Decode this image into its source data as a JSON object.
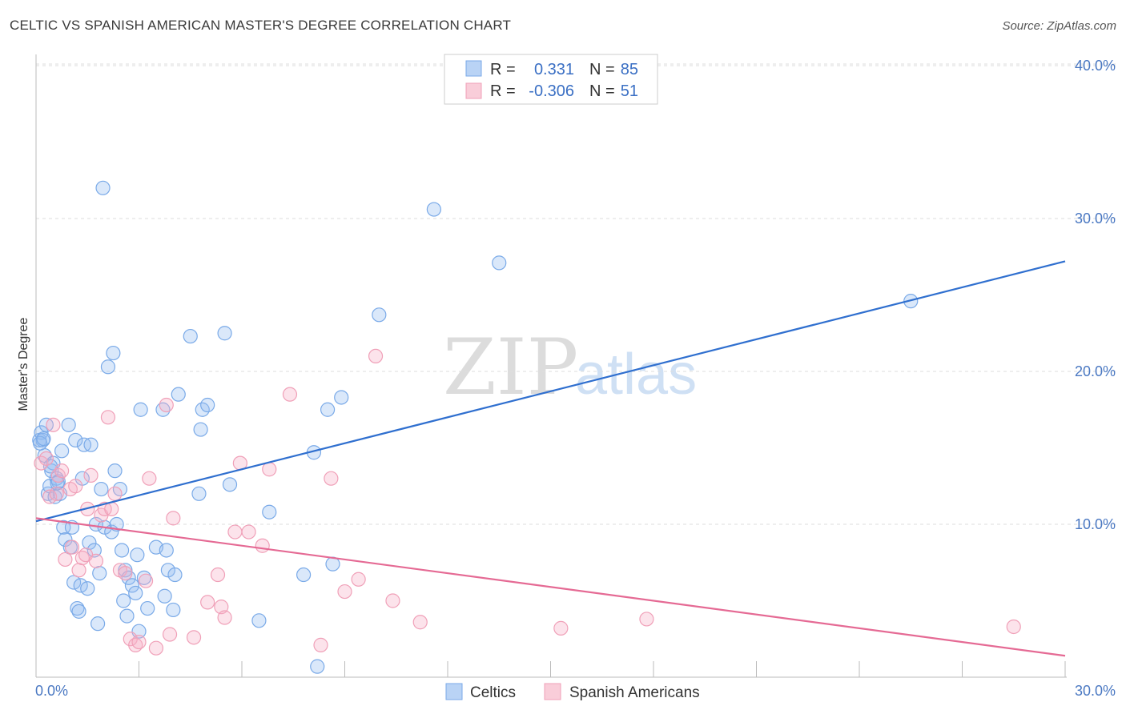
{
  "title": "CELTIC VS SPANISH AMERICAN MASTER'S DEGREE CORRELATION CHART",
  "source": "Source: ZipAtlas.com",
  "watermark": {
    "zip": "ZIP",
    "atlas": "atlas"
  },
  "legend": {
    "rows": [
      {
        "r_label": "R =",
        "r_value": "0.331",
        "n_label": "N =",
        "n_value": "85",
        "color": "#7aaae8"
      },
      {
        "r_label": "R =",
        "r_value": "-0.306",
        "n_label": "N =",
        "n_value": "51",
        "color": "#f0a0b8"
      }
    ]
  },
  "bottom_legend": [
    {
      "label": "Celtics",
      "color": "#7aaae8"
    },
    {
      "label": "Spanish Americans",
      "color": "#f0a0b8"
    }
  ],
  "chart_data": {
    "type": "scatter",
    "title": "CELTIC VS SPANISH AMERICAN MASTER'S DEGREE CORRELATION CHART",
    "xlabel": "",
    "ylabel": "Master's Degree",
    "xlim": [
      0,
      30
    ],
    "ylim": [
      0,
      41
    ],
    "x_tick_labels": [
      "0.0%",
      "30.0%"
    ],
    "y_ticks": [
      10,
      20,
      30,
      40
    ],
    "y_tick_labels": [
      "10.0%",
      "20.0%",
      "30.0%",
      "40.0%"
    ],
    "grid": true,
    "series": [
      {
        "name": "Celtics",
        "color": "#7aaae8",
        "line_color": "#2f6fcf",
        "trend": {
          "x": [
            0,
            30
          ],
          "y": [
            10.2,
            27.2
          ]
        },
        "points": [
          [
            0.1,
            15.5
          ],
          [
            0.15,
            16.0
          ],
          [
            0.2,
            15.5
          ],
          [
            0.25,
            14.5
          ],
          [
            0.3,
            16.5
          ],
          [
            0.35,
            12.0
          ],
          [
            0.4,
            12.5
          ],
          [
            0.45,
            13.5
          ],
          [
            0.5,
            14.0
          ],
          [
            0.55,
            11.8
          ],
          [
            0.6,
            13.0
          ],
          [
            0.65,
            12.8
          ],
          [
            0.7,
            12.0
          ],
          [
            0.75,
            14.8
          ],
          [
            0.8,
            9.8
          ],
          [
            0.85,
            9.0
          ],
          [
            0.95,
            16.5
          ],
          [
            1.0,
            8.5
          ],
          [
            1.1,
            6.2
          ],
          [
            1.15,
            15.5
          ],
          [
            1.2,
            4.5
          ],
          [
            1.25,
            4.3
          ],
          [
            1.3,
            6.0
          ],
          [
            1.35,
            13.0
          ],
          [
            1.4,
            15.2
          ],
          [
            1.5,
            5.8
          ],
          [
            1.55,
            8.8
          ],
          [
            1.6,
            15.2
          ],
          [
            1.7,
            8.3
          ],
          [
            1.75,
            10.0
          ],
          [
            1.8,
            3.5
          ],
          [
            1.85,
            6.8
          ],
          [
            1.9,
            12.3
          ],
          [
            1.95,
            32.0
          ],
          [
            2.0,
            9.8
          ],
          [
            2.1,
            20.3
          ],
          [
            2.2,
            9.5
          ],
          [
            2.25,
            21.2
          ],
          [
            2.3,
            13.5
          ],
          [
            2.35,
            10.0
          ],
          [
            2.45,
            12.3
          ],
          [
            2.5,
            8.3
          ],
          [
            2.55,
            5.0
          ],
          [
            2.6,
            7.0
          ],
          [
            2.65,
            4.0
          ],
          [
            2.7,
            6.5
          ],
          [
            2.8,
            6.0
          ],
          [
            2.9,
            5.5
          ],
          [
            2.95,
            8.0
          ],
          [
            3.0,
            3.0
          ],
          [
            3.05,
            17.5
          ],
          [
            3.15,
            6.5
          ],
          [
            3.25,
            4.5
          ],
          [
            3.5,
            8.5
          ],
          [
            3.7,
            17.5
          ],
          [
            3.75,
            5.3
          ],
          [
            3.8,
            8.3
          ],
          [
            3.85,
            7.0
          ],
          [
            4.0,
            4.4
          ],
          [
            4.05,
            6.7
          ],
          [
            4.15,
            18.5
          ],
          [
            4.5,
            22.3
          ],
          [
            4.75,
            12.0
          ],
          [
            4.8,
            16.2
          ],
          [
            4.85,
            17.5
          ],
          [
            5.0,
            17.8
          ],
          [
            5.5,
            22.5
          ],
          [
            5.65,
            12.6
          ],
          [
            6.5,
            3.7
          ],
          [
            6.8,
            10.8
          ],
          [
            7.8,
            6.7
          ],
          [
            8.1,
            14.7
          ],
          [
            8.2,
            0.7
          ],
          [
            8.5,
            17.5
          ],
          [
            8.65,
            7.4
          ],
          [
            8.9,
            18.3
          ],
          [
            10.0,
            23.7
          ],
          [
            11.6,
            30.6
          ],
          [
            13.5,
            27.1
          ],
          [
            25.5,
            24.6
          ],
          [
            0.12,
            15.3
          ],
          [
            0.22,
            15.6
          ],
          [
            0.42,
            13.8
          ],
          [
            0.62,
            12.7
          ],
          [
            1.05,
            9.8
          ]
        ]
      },
      {
        "name": "Spanish Americans",
        "color": "#f0a0b8",
        "line_color": "#e56a94",
        "trend": {
          "x": [
            0,
            30
          ],
          "y": [
            10.4,
            1.4
          ]
        },
        "points": [
          [
            0.15,
            14.0
          ],
          [
            0.3,
            14.3
          ],
          [
            0.4,
            11.8
          ],
          [
            0.5,
            16.5
          ],
          [
            0.6,
            12.0
          ],
          [
            0.65,
            13.2
          ],
          [
            0.75,
            13.5
          ],
          [
            0.85,
            7.7
          ],
          [
            1.0,
            12.3
          ],
          [
            1.05,
            8.5
          ],
          [
            1.15,
            12.5
          ],
          [
            1.25,
            7.0
          ],
          [
            1.35,
            7.8
          ],
          [
            1.45,
            8.0
          ],
          [
            1.5,
            11.0
          ],
          [
            1.6,
            13.2
          ],
          [
            1.75,
            7.6
          ],
          [
            1.9,
            10.6
          ],
          [
            2.0,
            11.0
          ],
          [
            2.1,
            17.0
          ],
          [
            2.2,
            11.0
          ],
          [
            2.3,
            12.0
          ],
          [
            2.45,
            7.0
          ],
          [
            2.6,
            6.8
          ],
          [
            2.75,
            2.5
          ],
          [
            2.9,
            2.1
          ],
          [
            3.0,
            2.3
          ],
          [
            3.2,
            6.3
          ],
          [
            3.3,
            13.0
          ],
          [
            3.5,
            1.9
          ],
          [
            3.8,
            17.8
          ],
          [
            3.9,
            2.8
          ],
          [
            4.0,
            10.4
          ],
          [
            4.6,
            2.6
          ],
          [
            5.0,
            4.9
          ],
          [
            5.3,
            6.7
          ],
          [
            5.4,
            4.6
          ],
          [
            5.5,
            3.9
          ],
          [
            5.8,
            9.5
          ],
          [
            5.95,
            14.0
          ],
          [
            6.2,
            9.5
          ],
          [
            6.6,
            8.6
          ],
          [
            6.8,
            13.6
          ],
          [
            7.4,
            18.5
          ],
          [
            8.3,
            2.1
          ],
          [
            8.6,
            13.0
          ],
          [
            9.0,
            5.6
          ],
          [
            9.4,
            6.4
          ],
          [
            9.9,
            21.0
          ],
          [
            10.4,
            5.0
          ],
          [
            11.2,
            3.6
          ]
        ],
        "extra_points": [
          [
            15.3,
            3.2
          ],
          [
            17.8,
            3.8
          ],
          [
            28.5,
            3.3
          ]
        ]
      }
    ]
  }
}
